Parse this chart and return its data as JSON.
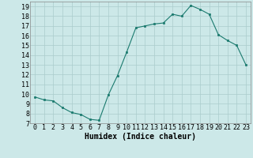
{
  "x": [
    0,
    1,
    2,
    3,
    4,
    5,
    6,
    7,
    8,
    9,
    10,
    11,
    12,
    13,
    14,
    15,
    16,
    17,
    18,
    19,
    20,
    21,
    22,
    23
  ],
  "y": [
    9.7,
    9.4,
    9.3,
    8.6,
    8.1,
    7.9,
    7.4,
    7.3,
    9.9,
    11.9,
    14.3,
    16.8,
    17.0,
    17.2,
    17.3,
    18.2,
    18.0,
    19.1,
    18.7,
    18.2,
    16.1,
    15.5,
    15.0,
    13.0
  ],
  "line_color": "#1a7a6e",
  "marker_color": "#1a7a6e",
  "bg_color": "#cce8e8",
  "grid_color": "#aacccc",
  "xlabel": "Humidex (Indice chaleur)",
  "xlim": [
    -0.5,
    23.5
  ],
  "ylim": [
    7,
    19.5
  ],
  "yticks": [
    7,
    8,
    9,
    10,
    11,
    12,
    13,
    14,
    15,
    16,
    17,
    18,
    19
  ],
  "xlabel_fontsize": 7,
  "tick_fontsize": 6
}
